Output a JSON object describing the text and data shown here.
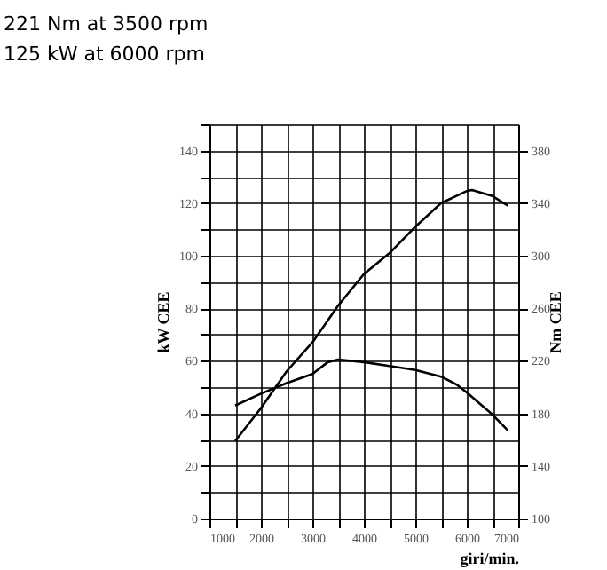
{
  "chart_data": {
    "type": "line",
    "title": "221 Nm at 3500 rpm",
    "subtitle": "125 kW at 6000 rpm",
    "xlabel": "giri/min.",
    "ylabel": "kW  CEE",
    "y2label": "Nm  CEE",
    "xlim": [
      1000,
      7000
    ],
    "xticks": [
      1000,
      {
        "value": 1500,
        "label": null
      },
      2000,
      {
        "value": 2500,
        "label": null
      },
      3000,
      {
        "value": 3500,
        "label": null
      },
      4000,
      {
        "value": 4500,
        "label": null
      },
      5000,
      {
        "value": 5500,
        "label": null
      },
      6000,
      {
        "value": 6500,
        "label": null
      },
      7000
    ],
    "ylim": [
      0,
      150
    ],
    "yticks": [
      0,
      {
        "value": 10,
        "label": null
      },
      20,
      {
        "value": 30,
        "label": null
      },
      40,
      {
        "value": 50,
        "label": null
      },
      60,
      {
        "value": 70,
        "label": null
      },
      80,
      {
        "value": 90,
        "label": null
      },
      100,
      {
        "value": 110,
        "label": null
      },
      120,
      {
        "value": 130,
        "label": null
      },
      140,
      {
        "value": 150,
        "label": null
      }
    ],
    "y2lim": [
      100,
      400
    ],
    "y2ticks": [
      100,
      140,
      180,
      220,
      260,
      300,
      340,
      380
    ],
    "grid": true,
    "series": [
      {
        "color": "#000000",
        "x": [
          1500,
          2000,
          2500,
          3000,
          3500,
          4000,
          4500,
          5000,
          5500,
          6000,
          6100,
          6500,
          6800
        ],
        "values": [
          29.5,
          42,
          56,
          67,
          81,
          93,
          101,
          111,
          120,
          124.6,
          125,
          122.7,
          119
        ]
      },
      {
        "color": "#000000",
        "axis": "y2",
        "x": [
          1500,
          2000,
          2500,
          3000,
          3300,
          3500,
          4000,
          4500,
          5000,
          5500,
          5800,
          6000,
          6500,
          6800
        ],
        "values": [
          186,
          195,
          203,
          210,
          219,
          221,
          219,
          216,
          213,
          208,
          202,
          196,
          179,
          167
        ]
      }
    ]
  }
}
